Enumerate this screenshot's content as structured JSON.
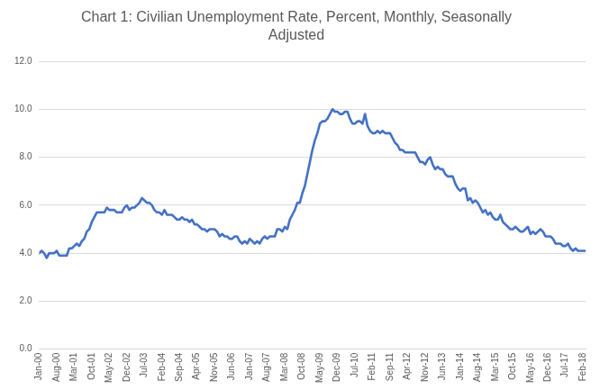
{
  "chart_data": {
    "type": "line",
    "title": "Chart 1: Civilian Unemployment Rate, Percent, Monthly, Seasonally Adjusted",
    "categories": [
      "Jan-00",
      null,
      null,
      null,
      null,
      null,
      null,
      "Aug-00",
      null,
      null,
      null,
      null,
      null,
      null,
      "Mar-01",
      null,
      null,
      null,
      null,
      null,
      null,
      "Oct-01",
      null,
      null,
      null,
      null,
      null,
      null,
      "May-02",
      null,
      null,
      null,
      null,
      null,
      null,
      "Dec-02",
      null,
      null,
      null,
      null,
      null,
      null,
      "Jul-03",
      null,
      null,
      null,
      null,
      null,
      null,
      "Feb-04",
      null,
      null,
      null,
      null,
      null,
      null,
      "Sep-04",
      null,
      null,
      null,
      null,
      null,
      null,
      "Apr-05",
      null,
      null,
      null,
      null,
      null,
      null,
      "Nov-05",
      null,
      null,
      null,
      null,
      null,
      null,
      "Jun-06",
      null,
      null,
      null,
      null,
      null,
      null,
      "Jan-07",
      null,
      null,
      null,
      null,
      null,
      null,
      "Aug-07",
      null,
      null,
      null,
      null,
      null,
      null,
      "Mar-08",
      null,
      null,
      null,
      null,
      null,
      null,
      "Oct-08",
      null,
      null,
      null,
      null,
      null,
      null,
      "May-09",
      null,
      null,
      null,
      null,
      null,
      null,
      "Dec-09",
      null,
      null,
      null,
      null,
      null,
      null,
      "Jul-10",
      null,
      null,
      null,
      null,
      null,
      null,
      "Feb-11",
      null,
      null,
      null,
      null,
      null,
      null,
      "Sep-11",
      null,
      null,
      null,
      null,
      null,
      null,
      "Apr-12",
      null,
      null,
      null,
      null,
      null,
      null,
      "Nov-12",
      null,
      null,
      null,
      null,
      null,
      null,
      "Jun-13",
      null,
      null,
      null,
      null,
      null,
      null,
      "Jan-14",
      null,
      null,
      null,
      null,
      null,
      null,
      "Aug-14",
      null,
      null,
      null,
      null,
      null,
      null,
      "Mar-15",
      null,
      null,
      null,
      null,
      null,
      null,
      "Oct-15",
      null,
      null,
      null,
      null,
      null,
      null,
      "May-16",
      null,
      null,
      null,
      null,
      null,
      null,
      "Dec-16",
      null,
      null,
      null,
      null,
      null,
      null,
      "Jul-17",
      null,
      null,
      null,
      null,
      null,
      null,
      "Feb-18",
      null
    ],
    "values": [
      4.0,
      4.1,
      4.0,
      3.8,
      4.0,
      4.0,
      4.0,
      4.1,
      3.9,
      3.9,
      3.9,
      3.9,
      4.2,
      4.2,
      4.3,
      4.4,
      4.3,
      4.5,
      4.6,
      4.9,
      5.0,
      5.3,
      5.5,
      5.7,
      5.7,
      5.7,
      5.7,
      5.9,
      5.8,
      5.8,
      5.8,
      5.7,
      5.7,
      5.7,
      5.9,
      6.0,
      5.8,
      5.9,
      5.9,
      6.0,
      6.1,
      6.3,
      6.2,
      6.1,
      6.1,
      6.0,
      5.8,
      5.7,
      5.7,
      5.6,
      5.8,
      5.6,
      5.6,
      5.6,
      5.5,
      5.4,
      5.4,
      5.5,
      5.4,
      5.4,
      5.3,
      5.4,
      5.2,
      5.2,
      5.1,
      5.0,
      5.0,
      4.9,
      5.0,
      5.0,
      5.0,
      4.9,
      4.7,
      4.8,
      4.7,
      4.7,
      4.6,
      4.6,
      4.7,
      4.7,
      4.5,
      4.4,
      4.5,
      4.4,
      4.6,
      4.5,
      4.4,
      4.5,
      4.4,
      4.6,
      4.7,
      4.6,
      4.7,
      4.7,
      4.7,
      5.0,
      5.0,
      4.9,
      5.1,
      5.0,
      5.4,
      5.6,
      5.8,
      6.1,
      6.1,
      6.5,
      6.8,
      7.3,
      7.8,
      8.3,
      8.7,
      9.0,
      9.4,
      9.5,
      9.5,
      9.6,
      9.8,
      10.0,
      9.9,
      9.9,
      9.8,
      9.8,
      9.9,
      9.9,
      9.6,
      9.4,
      9.4,
      9.5,
      9.5,
      9.4,
      9.8,
      9.3,
      9.1,
      9.0,
      9.0,
      9.1,
      9.0,
      9.1,
      9.0,
      9.0,
      9.0,
      8.8,
      8.6,
      8.5,
      8.3,
      8.3,
      8.2,
      8.2,
      8.2,
      8.2,
      8.2,
      8.0,
      7.8,
      7.8,
      7.7,
      7.9,
      8.0,
      7.7,
      7.5,
      7.6,
      7.5,
      7.5,
      7.3,
      7.2,
      7.2,
      7.2,
      6.9,
      6.7,
      6.6,
      6.7,
      6.7,
      6.2,
      6.3,
      6.1,
      6.2,
      6.1,
      5.9,
      5.7,
      5.8,
      5.6,
      5.7,
      5.5,
      5.4,
      5.4,
      5.6,
      5.3,
      5.2,
      5.1,
      5.0,
      5.0,
      5.1,
      5.0,
      4.9,
      4.9,
      5.0,
      5.1,
      4.8,
      4.9,
      4.8,
      4.9,
      5.0,
      4.9,
      4.7,
      4.7,
      4.7,
      4.6,
      4.4,
      4.4,
      4.4,
      4.3,
      4.3,
      4.4,
      4.2,
      4.1,
      4.2,
      4.1,
      4.1,
      4.1,
      4.1
    ],
    "color": "#4472c4",
    "ylim": [
      0,
      12
    ],
    "yticks": [
      {
        "value": 0,
        "label": "0.0"
      },
      {
        "value": 2,
        "label": "2.0"
      },
      {
        "value": 4,
        "label": "4.0"
      },
      {
        "value": 6,
        "label": "6.0"
      },
      {
        "value": 8,
        "label": "8.0"
      },
      {
        "value": 10,
        "label": "10.0"
      },
      {
        "value": 12,
        "label": "12.0"
      }
    ],
    "grid": true
  }
}
